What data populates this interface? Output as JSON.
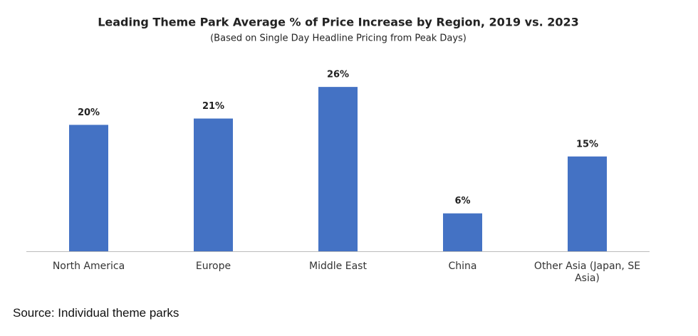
{
  "chart_data": {
    "type": "bar",
    "title": "Leading Theme Park Average % of Price Increase by Region, 2019 vs. 2023",
    "subtitle": "(Based on Single Day Headline Pricing from Peak Days)",
    "categories": [
      "North America",
      "Europe",
      "Middle East",
      "China",
      "Other Asia (Japan, SE Asia)"
    ],
    "values": [
      20,
      21,
      26,
      6,
      15
    ],
    "value_labels": [
      "20%",
      "21%",
      "26%",
      "6%",
      "15%"
    ],
    "color": "#4472c4"
  },
  "source": "Source: Individual theme parks"
}
